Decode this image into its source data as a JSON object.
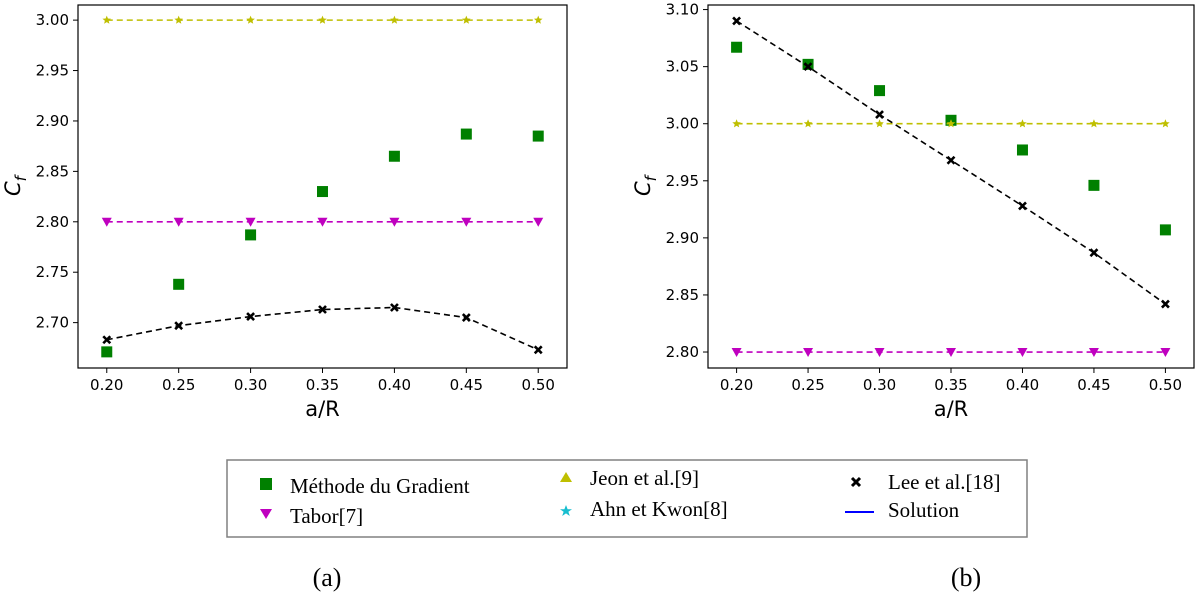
{
  "chart_data": [
    {
      "type": "scatter",
      "panel_label": "(a)",
      "xlabel": "a/R",
      "ylabel": "C_f",
      "xlim": [
        0.18,
        0.52
      ],
      "ylim": [
        2.655,
        3.015
      ],
      "xticks": [
        "0.20",
        "0.25",
        "0.30",
        "0.35",
        "0.40",
        "0.45",
        "0.50"
      ],
      "yticks": [
        "2.70",
        "2.75",
        "2.80",
        "2.85",
        "2.90",
        "2.95",
        "3.00"
      ],
      "x": [
        0.2,
        0.25,
        0.3,
        0.35,
        0.4,
        0.45,
        0.5
      ],
      "series": [
        {
          "key": "gradient",
          "values": [
            2.671,
            2.738,
            2.787,
            2.83,
            2.865,
            2.887,
            2.885
          ]
        },
        {
          "key": "tabor",
          "values": [
            2.8,
            2.8,
            2.8,
            2.8,
            2.8,
            2.8,
            2.8
          ]
        },
        {
          "key": "jeon",
          "values": [
            3.0,
            3.0,
            3.0,
            3.0,
            3.0,
            3.0,
            3.0
          ]
        },
        {
          "key": "lee",
          "values": [
            2.683,
            2.697,
            2.706,
            2.713,
            2.715,
            2.705,
            2.673
          ]
        }
      ]
    },
    {
      "type": "scatter",
      "panel_label": "(b)",
      "xlabel": "a/R",
      "ylabel": "C_f",
      "xlim": [
        0.18,
        0.52
      ],
      "ylim": [
        2.786,
        3.104
      ],
      "xticks": [
        "0.20",
        "0.25",
        "0.30",
        "0.35",
        "0.40",
        "0.45",
        "0.50"
      ],
      "yticks": [
        "2.80",
        "2.85",
        "2.90",
        "2.95",
        "3.00",
        "3.05",
        "3.10"
      ],
      "x": [
        0.2,
        0.25,
        0.3,
        0.35,
        0.4,
        0.45,
        0.5
      ],
      "series": [
        {
          "key": "gradient",
          "values": [
            3.067,
            3.052,
            3.029,
            3.003,
            2.977,
            2.946,
            2.907
          ]
        },
        {
          "key": "tabor",
          "values": [
            2.8,
            2.8,
            2.8,
            2.8,
            2.8,
            2.8,
            2.8
          ]
        },
        {
          "key": "jeon",
          "values": [
            3.0,
            3.0,
            3.0,
            3.0,
            3.0,
            3.0,
            3.0
          ]
        },
        {
          "key": "lee",
          "values": [
            3.09,
            3.05,
            3.008,
            2.968,
            2.928,
            2.887,
            2.842
          ]
        }
      ]
    }
  ],
  "legend": {
    "placement": "bottom-center",
    "entries": [
      {
        "key": "gradient",
        "label": "Méthode du Gradient",
        "marker": "square",
        "color": "#008000"
      },
      {
        "key": "tabor",
        "label": "Tabor[7]",
        "marker": "triangle-down",
        "color": "#bf00bf"
      },
      {
        "key": "jeon",
        "label": "Jeon et al.[9]",
        "marker": "triangle-up",
        "color": "#bfbf00"
      },
      {
        "key": "ahn",
        "label": "Ahn et Kwon[8]",
        "marker": "star",
        "color": "#17becf"
      },
      {
        "key": "lee",
        "label": "Lee et al.[18]",
        "marker": "x",
        "color": "#000000"
      },
      {
        "key": "solution",
        "label": "Solution",
        "marker": "line",
        "color": "#0000ff"
      }
    ]
  },
  "colors": {
    "gradient": "#008000",
    "tabor": "#bf00bf",
    "jeon": "#bfbf00",
    "lee": "#000000"
  }
}
